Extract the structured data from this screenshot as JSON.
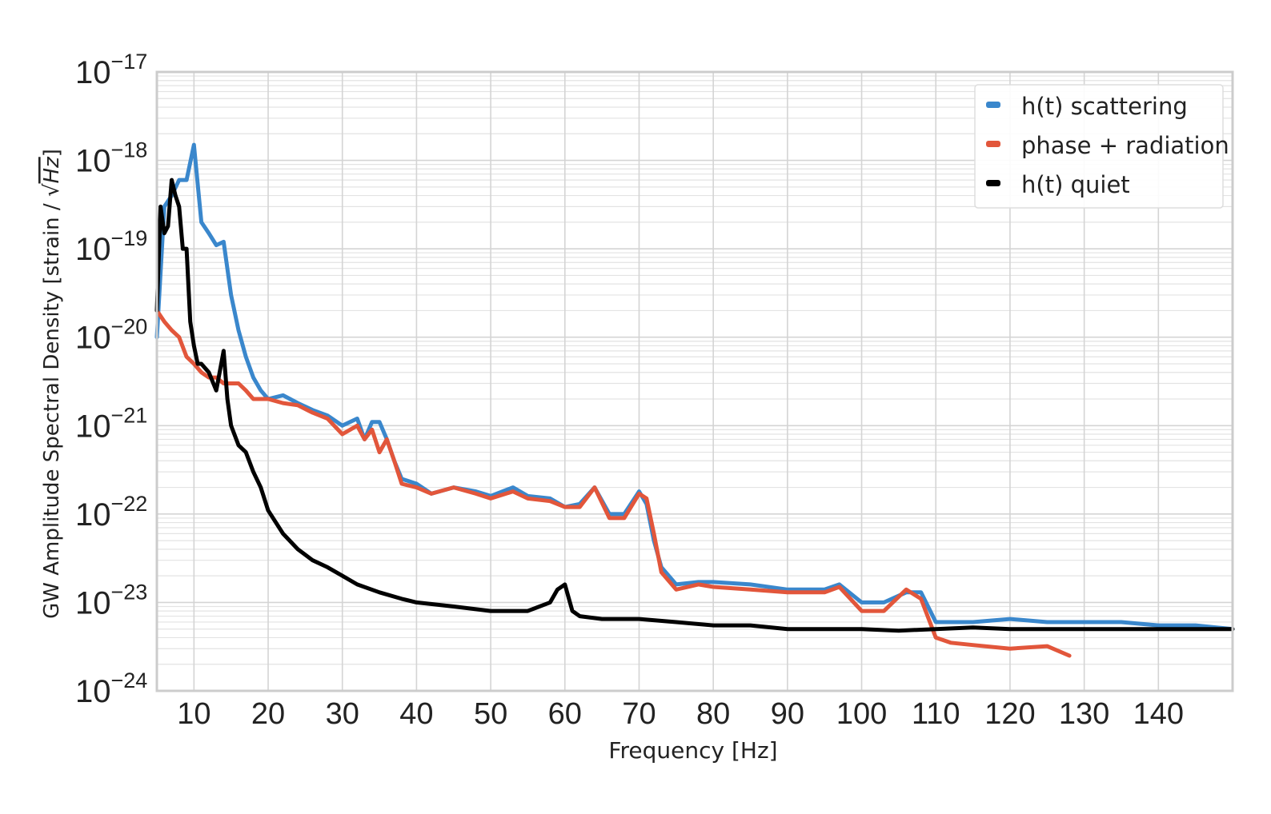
{
  "chart_data": {
    "type": "line",
    "xlabel": "Frequency [Hz]",
    "ylabel": "GW Amplitude Spectral Density [strain / √Hz]",
    "ylabel_prefix": "GW Amplitude Spectral Density [strain / ",
    "ylabel_sqrt": "√",
    "ylabel_hz": "Hz",
    "ylabel_suffix": "]",
    "xlim": [
      5,
      150
    ],
    "ylim": [
      1e-24,
      1e-17
    ],
    "yscale": "log",
    "grid": true,
    "legend_position": "top-right",
    "xticks": [
      "10",
      "20",
      "30",
      "40",
      "50",
      "60",
      "70",
      "80",
      "90",
      "100",
      "110",
      "120",
      "130",
      "140"
    ],
    "xtick_values": [
      10,
      20,
      30,
      40,
      50,
      60,
      70,
      80,
      90,
      100,
      110,
      120,
      130,
      140
    ],
    "yticks": [
      {
        "base": "10",
        "exp": "−17",
        "value": 1e-17
      },
      {
        "base": "10",
        "exp": "−18",
        "value": 1e-18
      },
      {
        "base": "10",
        "exp": "−19",
        "value": 1e-19
      },
      {
        "base": "10",
        "exp": "−20",
        "value": 1e-20
      },
      {
        "base": "10",
        "exp": "−21",
        "value": 1e-21
      },
      {
        "base": "10",
        "exp": "−22",
        "value": 1e-22
      },
      {
        "base": "10",
        "exp": "−23",
        "value": 1e-23
      },
      {
        "base": "10",
        "exp": "−24",
        "value": 1e-24
      }
    ],
    "series": [
      {
        "name": "h(t) scattering",
        "color": "#3a87cc",
        "x": [
          5,
          6,
          7,
          8,
          9,
          10,
          11,
          12,
          13,
          14,
          15,
          16,
          17,
          18,
          19,
          20,
          22,
          24,
          26,
          28,
          30,
          32,
          33,
          34,
          35,
          36,
          37,
          38,
          40,
          42,
          45,
          48,
          50,
          53,
          55,
          58,
          60,
          62,
          64,
          66,
          68,
          70,
          71,
          72,
          73,
          75,
          78,
          80,
          85,
          90,
          95,
          97,
          100,
          103,
          106,
          108,
          110,
          112,
          115,
          120,
          125,
          130,
          135,
          140,
          145,
          150
        ],
        "y": [
          1e-20,
          3e-19,
          4e-19,
          6e-19,
          6e-19,
          1.5e-18,
          2e-19,
          1.5e-19,
          1.1e-19,
          1.2e-19,
          3e-20,
          1.2e-20,
          6e-21,
          3.5e-21,
          2.5e-21,
          2e-21,
          2.2e-21,
          1.8e-21,
          1.5e-21,
          1.3e-21,
          1e-21,
          1.2e-21,
          7e-22,
          1.1e-21,
          1.1e-21,
          7e-22,
          4e-22,
          2.5e-22,
          2.2e-22,
          1.7e-22,
          2e-22,
          1.8e-22,
          1.6e-22,
          2e-22,
          1.6e-22,
          1.5e-22,
          1.2e-22,
          1.3e-22,
          2e-22,
          1e-22,
          1e-22,
          1.8e-22,
          1.3e-22,
          5e-23,
          2.5e-23,
          1.6e-23,
          1.7e-23,
          1.7e-23,
          1.6e-23,
          1.4e-23,
          1.4e-23,
          1.6e-23,
          1e-23,
          1e-23,
          1.3e-23,
          1.3e-23,
          6e-24,
          6e-24,
          6e-24,
          6.5e-24,
          6e-24,
          6e-24,
          6e-24,
          5.5e-24,
          5.5e-24,
          5e-24
        ]
      },
      {
        "name": "phase + radiation",
        "color": "#e2563b",
        "x": [
          5,
          6,
          7,
          8,
          9,
          10,
          11,
          12,
          13,
          14,
          15,
          16,
          17,
          18,
          19,
          20,
          22,
          24,
          26,
          28,
          30,
          32,
          33,
          34,
          35,
          36,
          37,
          38,
          40,
          42,
          45,
          48,
          50,
          53,
          55,
          58,
          60,
          62,
          64,
          66,
          68,
          70,
          71,
          72,
          73,
          75,
          78,
          80,
          85,
          90,
          95,
          97,
          100,
          103,
          106,
          108,
          110,
          112,
          115,
          120,
          125,
          128
        ],
        "y": [
          2e-20,
          1.5e-20,
          1.2e-20,
          1e-20,
          6e-21,
          5e-21,
          4e-21,
          3.5e-21,
          3.5e-21,
          3e-21,
          3e-21,
          3e-21,
          2.5e-21,
          2e-21,
          2e-21,
          2e-21,
          1.8e-21,
          1.7e-21,
          1.4e-21,
          1.2e-21,
          8e-22,
          1e-21,
          7e-22,
          9e-22,
          5e-22,
          7e-22,
          4e-22,
          2.2e-22,
          2e-22,
          1.7e-22,
          2e-22,
          1.7e-22,
          1.5e-22,
          1.8e-22,
          1.5e-22,
          1.4e-22,
          1.2e-22,
          1.2e-22,
          2e-22,
          9e-23,
          9e-23,
          1.7e-22,
          1.5e-22,
          6e-23,
          2.2e-23,
          1.4e-23,
          1.6e-23,
          1.5e-23,
          1.4e-23,
          1.3e-23,
          1.3e-23,
          1.5e-23,
          8e-24,
          8e-24,
          1.4e-23,
          1.1e-23,
          4e-24,
          3.5e-24,
          3.3e-24,
          3e-24,
          3.2e-24,
          2.5e-24
        ]
      },
      {
        "name": "h(t) quiet",
        "color": "#000000",
        "x": [
          5,
          5.5,
          6,
          6.5,
          7,
          7.5,
          8,
          8.5,
          9,
          9.5,
          10,
          10.5,
          11,
          12,
          13,
          14,
          14.5,
          15,
          16,
          17,
          18,
          19,
          20,
          22,
          24,
          26,
          28,
          30,
          32,
          35,
          38,
          40,
          45,
          50,
          55,
          58,
          59,
          60,
          61,
          62,
          65,
          70,
          75,
          80,
          85,
          90,
          95,
          100,
          105,
          110,
          115,
          120,
          125,
          130,
          135,
          140,
          145,
          150
        ],
        "y": [
          2e-20,
          3e-19,
          1.5e-19,
          1.8e-19,
          6e-19,
          4e-19,
          3e-19,
          1e-19,
          1e-19,
          1.5e-20,
          8e-21,
          5e-21,
          5e-21,
          4e-21,
          2.5e-21,
          7e-21,
          2e-21,
          1e-21,
          6e-22,
          5e-22,
          3e-22,
          2e-22,
          1.1e-22,
          6e-23,
          4e-23,
          3e-23,
          2.5e-23,
          2e-23,
          1.6e-23,
          1.3e-23,
          1.1e-23,
          1e-23,
          9e-24,
          8e-24,
          8e-24,
          1e-23,
          1.4e-23,
          1.6e-23,
          8e-24,
          7e-24,
          6.5e-24,
          6.5e-24,
          6e-24,
          5.5e-24,
          5.5e-24,
          5e-24,
          5e-24,
          5e-24,
          4.8e-24,
          5e-24,
          5.2e-24,
          5e-24,
          5e-24,
          5e-24,
          5e-24,
          5e-24,
          5e-24,
          5e-24
        ]
      }
    ]
  }
}
